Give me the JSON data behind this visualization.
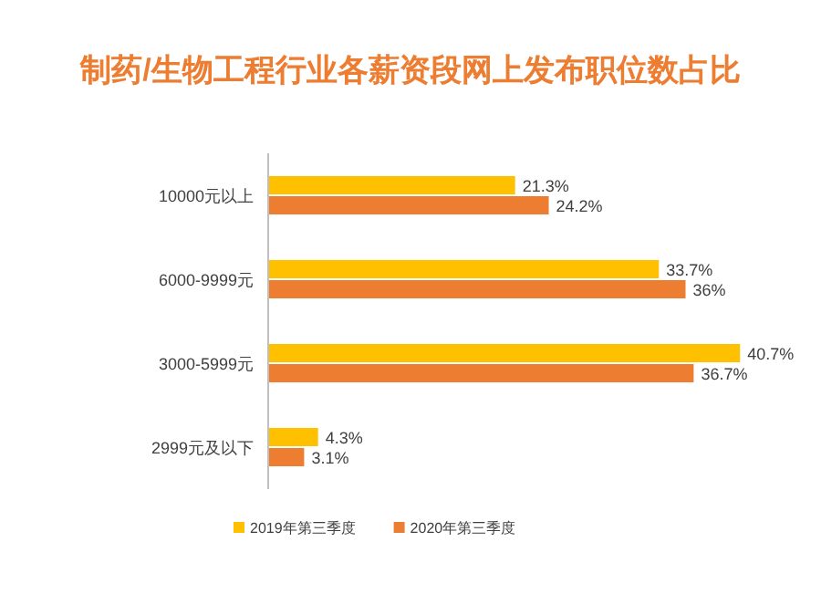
{
  "chart_data": {
    "type": "bar",
    "orientation": "horizontal",
    "title": "制药/生物工程行业各薪资段网上发布职位数占比",
    "categories": [
      "10000元以上",
      "6000-9999元",
      "3000-5999元",
      "2999元及以下"
    ],
    "series": [
      {
        "name": "2019年第三季度",
        "color": "#ffc000",
        "values": [
          21.3,
          33.7,
          40.7,
          4.3
        ],
        "value_labels": [
          "21.3%",
          "33.7%",
          "40.7%",
          "4.3%"
        ]
      },
      {
        "name": "2020年第三季度",
        "color": "#ed7d31",
        "values": [
          24.2,
          36,
          36.7,
          3.1
        ],
        "value_labels": [
          "24.2%",
          "36%",
          "36.7%",
          "3.1%"
        ]
      }
    ],
    "legend": "bottom"
  }
}
